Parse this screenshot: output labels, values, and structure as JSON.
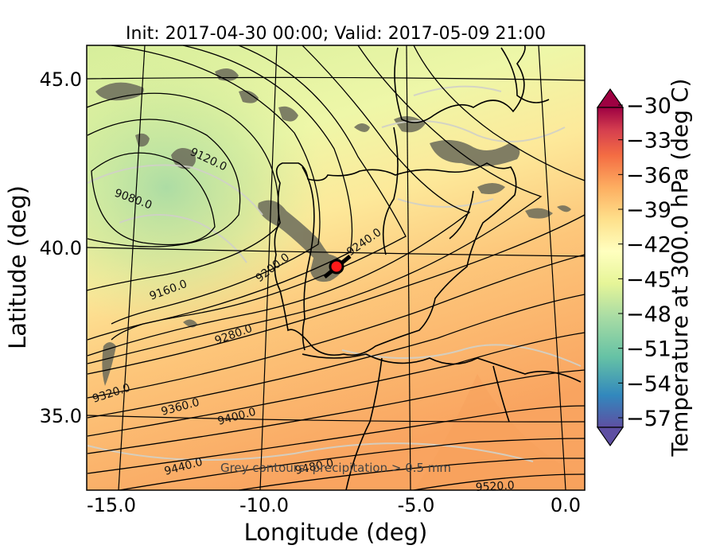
{
  "title": "Init: 2017-04-30 00:00; Valid: 2017-05-09 21:00",
  "xlabel": "Longitude (deg)",
  "ylabel": "Latitude (deg)",
  "colorbar_label": "Temperature at 300.0 hPa (deg C)",
  "note": "Grey contours: precipitation > 0.5 mm",
  "colors": {
    "cold": "#5e4fa2",
    "cool": "#66c2a5",
    "mid": "#ffffbf",
    "warm": "#fdae61",
    "hot": "#9e0142",
    "marker": "#ff1a1a"
  },
  "chart_data": {
    "type": "map",
    "x_ticks": [
      "-15.0",
      "-10.0",
      "-5.0",
      "0.0"
    ],
    "y_ticks": [
      "45.0",
      "40.0",
      "35.0"
    ],
    "xlim": [
      -16,
      0
    ],
    "ylim": [
      32.5,
      46
    ],
    "colorbar_ticks": [
      "-30",
      "-33",
      "-36",
      "-39",
      "-42",
      "-45",
      "-48",
      "-51",
      "-54",
      "-57"
    ],
    "colorbar_range": [
      -58.5,
      -28.5
    ],
    "contour_labels": [
      "9080.0",
      "9120.0",
      "9160.0",
      "9200.0",
      "9240.0",
      "9280.0",
      "9320.0",
      "9360.0",
      "9400.0",
      "9440.0",
      "9480.0",
      "9520.0"
    ],
    "marker": {
      "lon": -7.6,
      "lat": 39.4
    }
  }
}
